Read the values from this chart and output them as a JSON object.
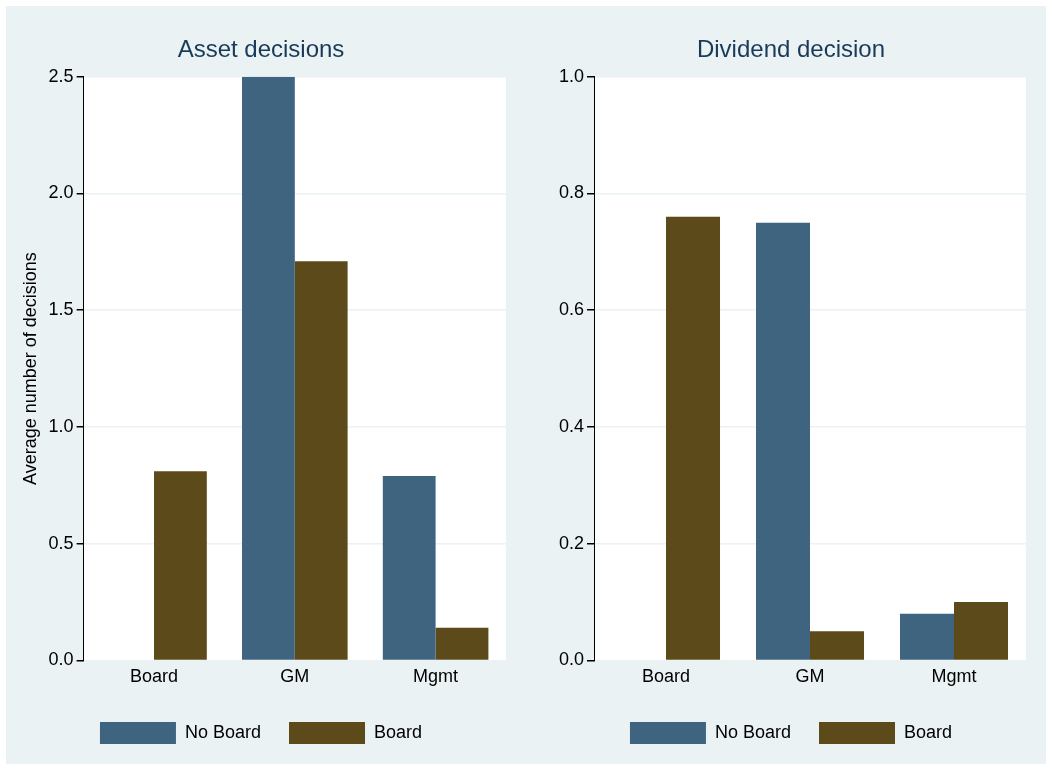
{
  "chart_data": [
    {
      "type": "bar",
      "title": "Asset decisions",
      "ylabel": "Average number of decisions",
      "categories": [
        "Board",
        "GM",
        "Mgmt"
      ],
      "series": [
        {
          "name": "No Board",
          "color": "#3e6480",
          "values": [
            0,
            2.5,
            0.79
          ]
        },
        {
          "name": "Board",
          "color": "#5c4a1a",
          "values": [
            0.81,
            1.71,
            0.14
          ]
        }
      ],
      "ylim": [
        0,
        2.5
      ],
      "yticks": [
        {
          "value": 0,
          "label": "0.0"
        },
        {
          "value": 0.5,
          "label": "0.5"
        },
        {
          "value": 1,
          "label": "1.0"
        },
        {
          "value": 1.5,
          "label": "1.5"
        },
        {
          "value": 2,
          "label": "2.0"
        },
        {
          "value": 2.5,
          "label": "2.5"
        }
      ],
      "grid": "y",
      "legend": "bottom"
    },
    {
      "type": "bar",
      "title": "Dividend decision",
      "categories": [
        "Board",
        "GM",
        "Mgmt"
      ],
      "series": [
        {
          "name": "No Board",
          "color": "#3e6480",
          "values": [
            0,
            0.75,
            0.08
          ]
        },
        {
          "name": "Board",
          "color": "#5c4a1a",
          "values": [
            0.76,
            0.05,
            0.1
          ]
        }
      ],
      "ylim": [
        0,
        1
      ],
      "yticks": [
        {
          "value": 0,
          "label": "0.0"
        },
        {
          "value": 0.2,
          "label": "0.2"
        },
        {
          "value": 0.4,
          "label": "0.4"
        },
        {
          "value": 0.6,
          "label": "0.6"
        },
        {
          "value": 0.8,
          "label": "0.8"
        },
        {
          "value": 1,
          "label": "1.0"
        }
      ],
      "grid": "y",
      "legend": "bottom"
    }
  ]
}
